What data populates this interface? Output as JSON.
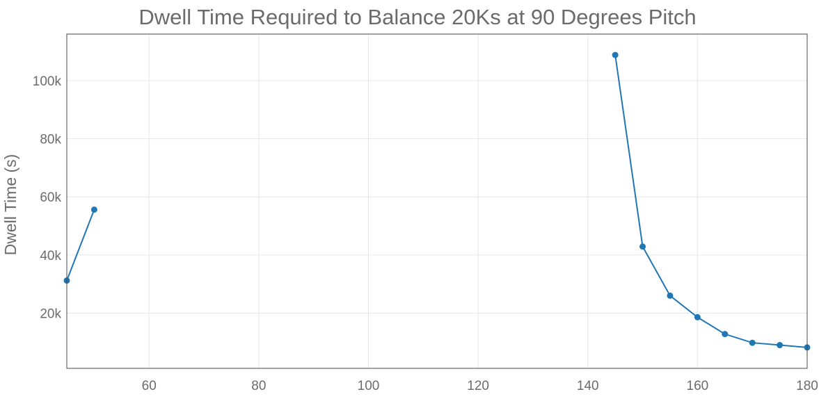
{
  "chart_data": {
    "type": "line",
    "title": "Dwell Time Required to Balance 20Ks at 90 Degrees Pitch",
    "xlabel": "",
    "ylabel": "Dwell Time (s)",
    "xlim": [
      45,
      180
    ],
    "ylim": [
      1000,
      116000
    ],
    "x_ticks": [
      60,
      80,
      100,
      120,
      140,
      160,
      180
    ],
    "x_tick_labels": [
      "60",
      "80",
      "100",
      "120",
      "140",
      "160",
      "180"
    ],
    "y_ticks": [
      20000,
      40000,
      60000,
      80000,
      100000
    ],
    "y_tick_labels": [
      "20k",
      "40k",
      "60k",
      "80k",
      "100k"
    ],
    "grid": true,
    "color": "#1f77b4",
    "series": [
      {
        "segments": [
          [
            [
              45,
              31200
            ],
            [
              50,
              55600
            ]
          ],
          [
            [
              145,
              108800
            ],
            [
              150,
              42900
            ],
            [
              155,
              26000
            ],
            [
              160,
              18600
            ],
            [
              165,
              12800
            ],
            [
              170,
              9800
            ],
            [
              175,
              9000
            ],
            [
              180,
              8200
            ]
          ]
        ]
      }
    ]
  }
}
